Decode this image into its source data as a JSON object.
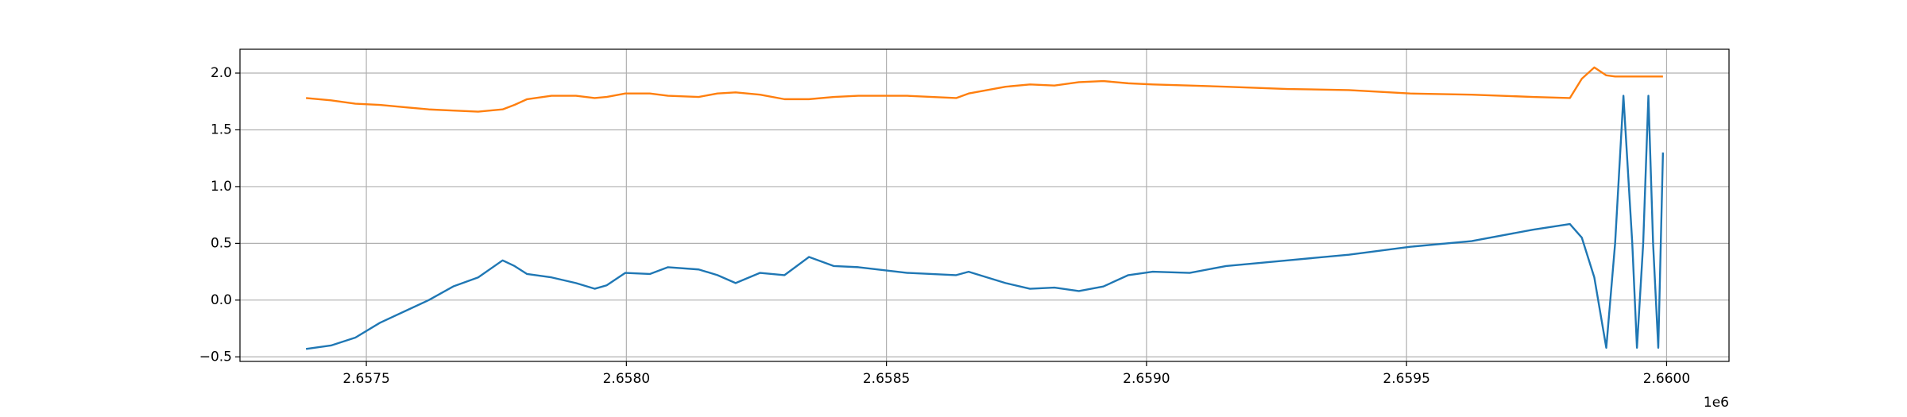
{
  "chart_data": {
    "type": "line",
    "x": [
      2657384,
      2657432,
      2657479,
      2657526,
      2657573,
      2657620,
      2657667,
      2657715,
      2657762,
      2657785,
      2657809,
      2657856,
      2657903,
      2657939,
      2657962,
      2657998,
      2658045,
      2658080,
      2658139,
      2658175,
      2658210,
      2658257,
      2658304,
      2658351,
      2658399,
      2658446,
      2658540,
      2658634,
      2658658,
      2658729,
      2658776,
      2658823,
      2658870,
      2658917,
      2658965,
      2659012,
      2659083,
      2659153,
      2659271,
      2659389,
      2659507,
      2659625,
      2659743,
      2659814,
      2659837,
      2659861,
      2659884,
      2659901,
      2659917,
      2659934,
      2659943,
      2659955,
      2659965,
      2659974,
      2659984,
      2659993
    ],
    "series": [
      {
        "color": "#1f77b4",
        "values": [
          -0.43,
          -0.4,
          -0.33,
          -0.2,
          -0.1,
          0.0,
          0.12,
          0.2,
          0.35,
          0.3,
          0.23,
          0.2,
          0.15,
          0.1,
          0.13,
          0.24,
          0.23,
          0.29,
          0.27,
          0.22,
          0.15,
          0.24,
          0.22,
          0.38,
          0.3,
          0.29,
          0.24,
          0.22,
          0.25,
          0.15,
          0.1,
          0.11,
          0.08,
          0.12,
          0.22,
          0.25,
          0.24,
          0.3,
          0.35,
          0.4,
          0.47,
          0.52,
          0.62,
          0.67,
          0.55,
          0.2,
          -0.42,
          0.5,
          1.8,
          0.5,
          -0.42,
          0.5,
          1.8,
          0.5,
          -0.42,
          1.3
        ]
      },
      {
        "color": "#ff7f0e",
        "values": [
          1.78,
          1.76,
          1.73,
          1.72,
          1.7,
          1.68,
          1.67,
          1.66,
          1.68,
          1.72,
          1.77,
          1.8,
          1.8,
          1.78,
          1.79,
          1.82,
          1.82,
          1.8,
          1.79,
          1.82,
          1.83,
          1.81,
          1.77,
          1.77,
          1.79,
          1.8,
          1.8,
          1.78,
          1.82,
          1.88,
          1.9,
          1.89,
          1.92,
          1.93,
          1.91,
          1.9,
          1.89,
          1.88,
          1.86,
          1.85,
          1.82,
          1.81,
          1.79,
          1.78,
          1.95,
          2.05,
          1.98,
          1.97,
          1.97,
          1.97,
          1.97,
          1.97,
          1.97,
          1.97,
          1.97,
          1.97
        ]
      }
    ],
    "xlim": [
      2657257,
      2660120
    ],
    "xticks": [
      {
        "value": 2657500,
        "label": "2.6575"
      },
      {
        "value": 2658000,
        "label": "2.6580"
      },
      {
        "value": 2658500,
        "label": "2.6585"
      },
      {
        "value": 2659000,
        "label": "2.6590"
      },
      {
        "value": 2659500,
        "label": "2.6595"
      },
      {
        "value": 2660000,
        "label": "2.6600"
      }
    ],
    "x_offset_label": "1e6",
    "ylim": [
      -0.54,
      2.21
    ],
    "yticks": [
      {
        "value": -0.5,
        "label": "−0.5"
      },
      {
        "value": 0,
        "label": "0.0"
      },
      0.5,
      {
        "value": 1,
        "label": "1.0"
      },
      1.5,
      {
        "value": 2,
        "label": "2.0"
      }
    ],
    "grid": true
  }
}
